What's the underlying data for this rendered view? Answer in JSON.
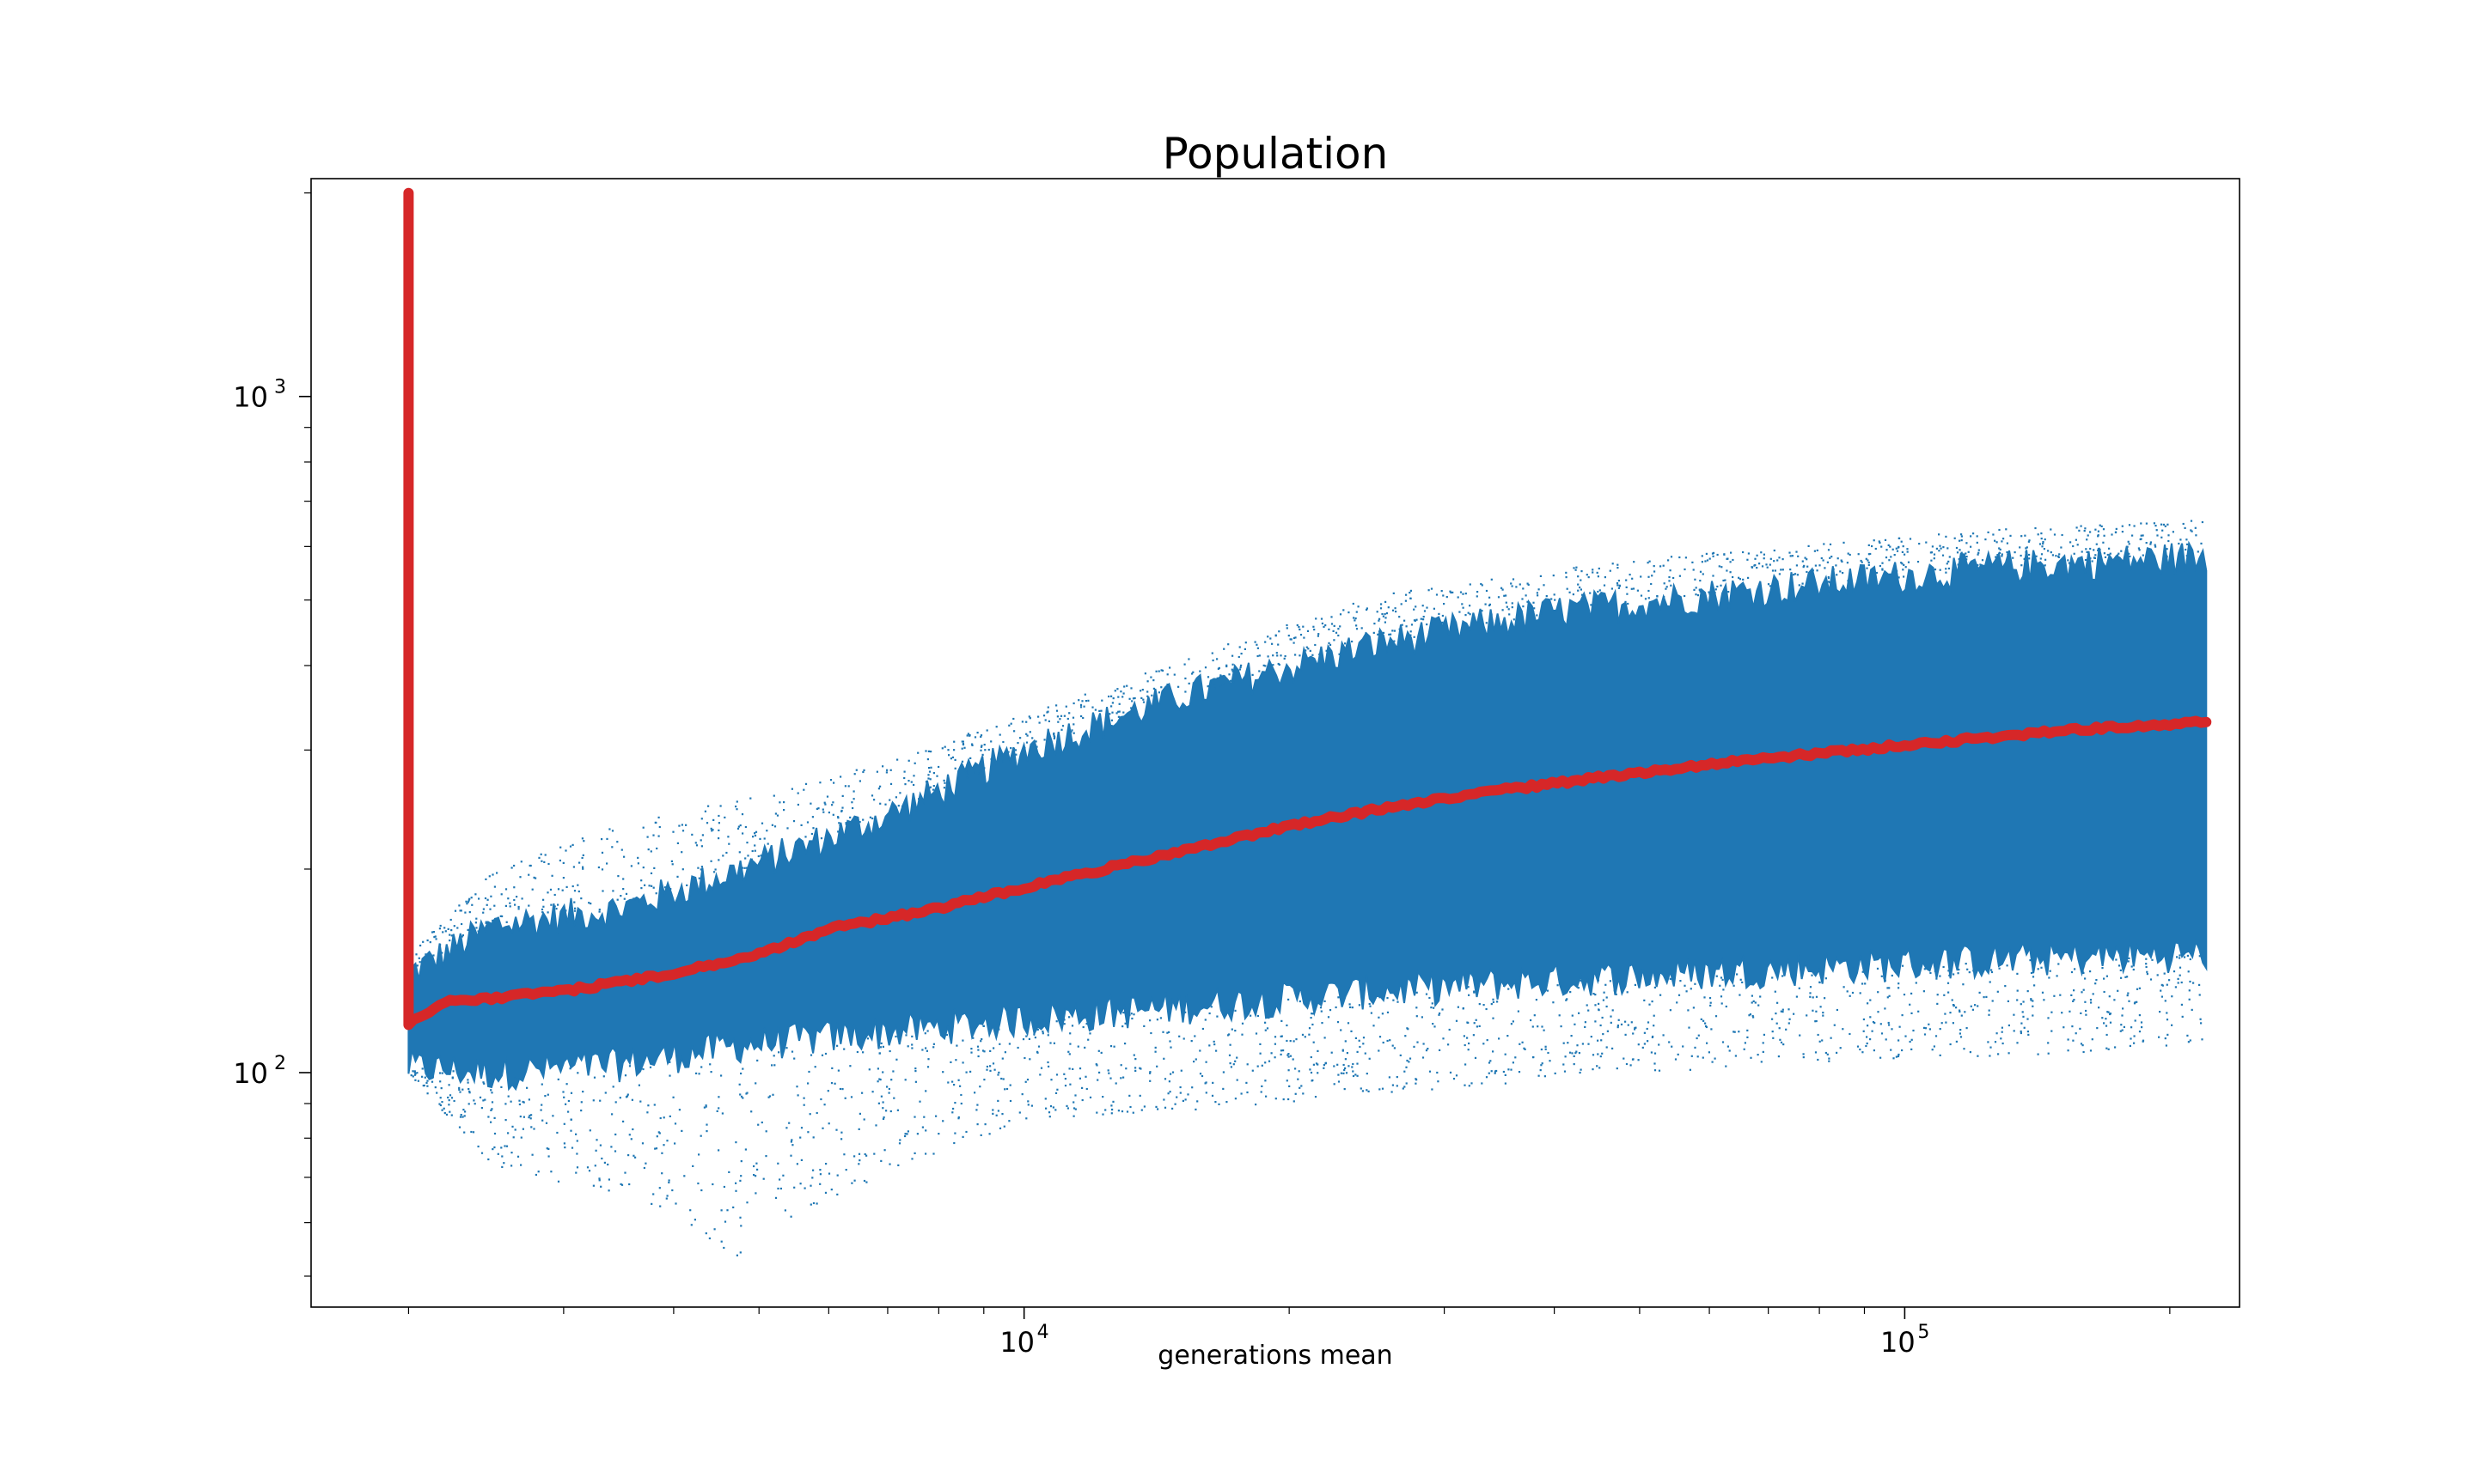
{
  "chart_data": {
    "type": "scatter",
    "title": "Population",
    "xlabel": "generations mean",
    "ylabel": "",
    "x_scale": "log",
    "y_scale": "log",
    "xlim": [
      1550,
      240000
    ],
    "ylim": [
      45,
      2100
    ],
    "x_ticks": [
      {
        "value": 10000,
        "base": "10",
        "exponent": "4"
      },
      {
        "value": 100000,
        "base": "10",
        "exponent": "5"
      }
    ],
    "y_ticks": [
      {
        "value": 100,
        "base": "10",
        "exponent": "2"
      },
      {
        "value": 1000,
        "base": "10",
        "exponent": "3"
      }
    ],
    "grid": false,
    "legend": "none",
    "series": [
      {
        "kind": "scatter-band",
        "color": "#1f77b4",
        "x_range": [
          2000,
          220000
        ],
        "band": [
          {
            "x": 2000,
            "low": 102,
            "high": 140,
            "min": 100,
            "max": 150
          },
          {
            "x": 2500,
            "low": 100,
            "high": 165,
            "min": 72,
            "max": 200
          },
          {
            "x": 3500,
            "low": 103,
            "high": 175,
            "min": 65,
            "max": 235
          },
          {
            "x": 4800,
            "low": 110,
            "high": 200,
            "min": 53,
            "max": 255
          },
          {
            "x": 7000,
            "low": 115,
            "high": 240,
            "min": 72,
            "max": 290
          },
          {
            "x": 10000,
            "low": 120,
            "high": 300,
            "min": 85,
            "max": 340
          },
          {
            "x": 15000,
            "low": 125,
            "high": 360,
            "min": 88,
            "max": 410
          },
          {
            "x": 25000,
            "low": 132,
            "high": 430,
            "min": 93,
            "max": 510
          },
          {
            "x": 40000,
            "low": 137,
            "high": 480,
            "min": 98,
            "max": 560
          },
          {
            "x": 70000,
            "low": 142,
            "high": 520,
            "min": 103,
            "max": 600
          },
          {
            "x": 130000,
            "low": 147,
            "high": 560,
            "min": 106,
            "max": 640
          },
          {
            "x": 220000,
            "low": 150,
            "high": 580,
            "min": 110,
            "max": 660
          }
        ]
      },
      {
        "kind": "line",
        "color": "#d62728",
        "x": [
          2000,
          2000,
          2000,
          2000,
          2200,
          3000,
          4000,
          5000,
          6000,
          8000,
          10000,
          15000,
          20000,
          30000,
          50000,
          70000,
          100000,
          150000,
          220000
        ],
        "y": [
          2000,
          300,
          125,
          118,
          127,
          132,
          140,
          150,
          163,
          175,
          188,
          212,
          232,
          255,
          278,
          292,
          305,
          320,
          330
        ]
      }
    ]
  }
}
